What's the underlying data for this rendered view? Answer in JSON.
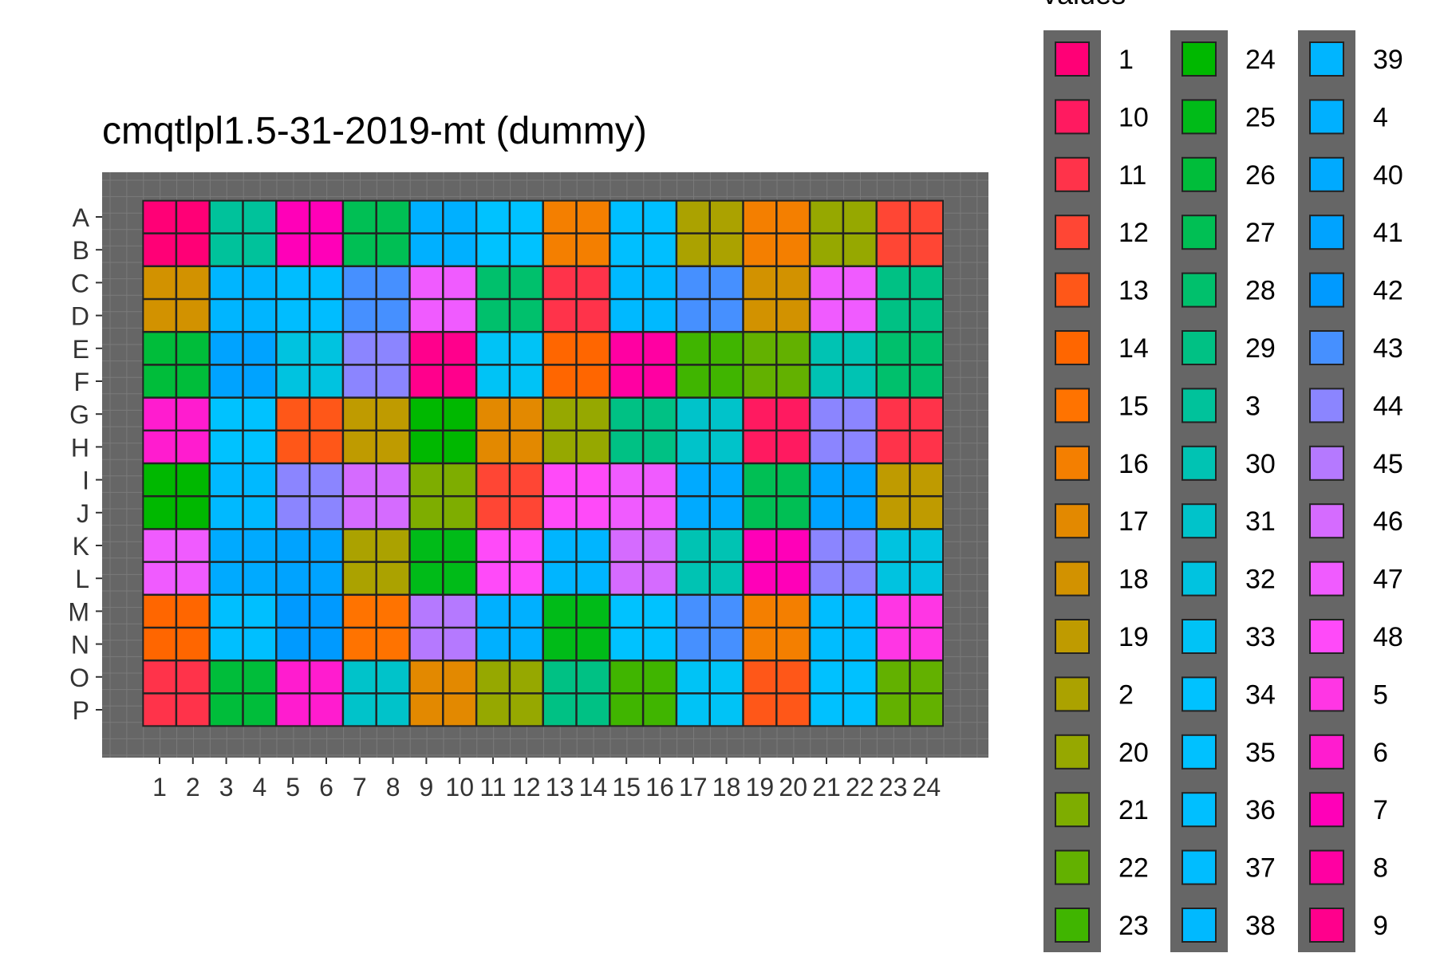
{
  "chart_data": {
    "type": "heatmap",
    "title": "cmqtlpl1.5-31-2019-mt (dummy)",
    "legend_title": "values",
    "rows": [
      "A",
      "B",
      "C",
      "D",
      "E",
      "F",
      "G",
      "H",
      "I",
      "J",
      "K",
      "L",
      "M",
      "N",
      "O",
      "P"
    ],
    "columns": [
      "1",
      "2",
      "3",
      "4",
      "5",
      "6",
      "7",
      "8",
      "9",
      "10",
      "11",
      "12",
      "13",
      "14",
      "15",
      "16",
      "17",
      "18",
      "19",
      "20",
      "21",
      "22",
      "23",
      "24"
    ],
    "block_values": [
      [
        "1",
        "3",
        "7",
        "27",
        "4",
        "34",
        "16",
        "36",
        "2",
        "16",
        "20",
        "12"
      ],
      [
        "18",
        "39",
        "37",
        "43",
        "47",
        "28",
        "11",
        "38",
        "43",
        "18",
        "47",
        "29"
      ],
      [
        "26",
        "41",
        "32",
        "44",
        "9",
        "33",
        "14",
        "8",
        "23",
        "22",
        "30",
        "28"
      ],
      [
        "6",
        "34",
        "13",
        "19",
        "24",
        "17",
        "20",
        "29",
        "31",
        "10",
        "44",
        "11"
      ],
      [
        "24",
        "38",
        "44",
        "46",
        "21",
        "12",
        "48",
        "47",
        "40",
        "27",
        "41",
        "19"
      ],
      [
        "47",
        "40",
        "41",
        "2",
        "25",
        "48",
        "39",
        "46",
        "30",
        "7",
        "44",
        "32"
      ],
      [
        "14",
        "36",
        "42",
        "15",
        "45",
        "4",
        "25",
        "34",
        "43",
        "16",
        "37",
        "5"
      ],
      [
        "11",
        "26",
        "6",
        "31",
        "17",
        "20",
        "29",
        "23",
        "33",
        "13",
        "35",
        "22"
      ]
    ],
    "legend_items": [
      "1",
      "10",
      "11",
      "12",
      "13",
      "14",
      "15",
      "16",
      "17",
      "18",
      "19",
      "2",
      "20",
      "21",
      "22",
      "23",
      "24",
      "25",
      "26",
      "27",
      "28",
      "29",
      "3",
      "30",
      "31",
      "32",
      "33",
      "34",
      "35",
      "36",
      "37",
      "38",
      "39",
      "4",
      "40",
      "41",
      "42",
      "43",
      "44",
      "45",
      "46",
      "47",
      "48",
      "5",
      "6",
      "7",
      "8",
      "9"
    ],
    "colors": {
      "panel_background": "#666666",
      "grid_line": "#7a7a7a",
      "tile_border": "#222222",
      "text": "#333333"
    }
  }
}
